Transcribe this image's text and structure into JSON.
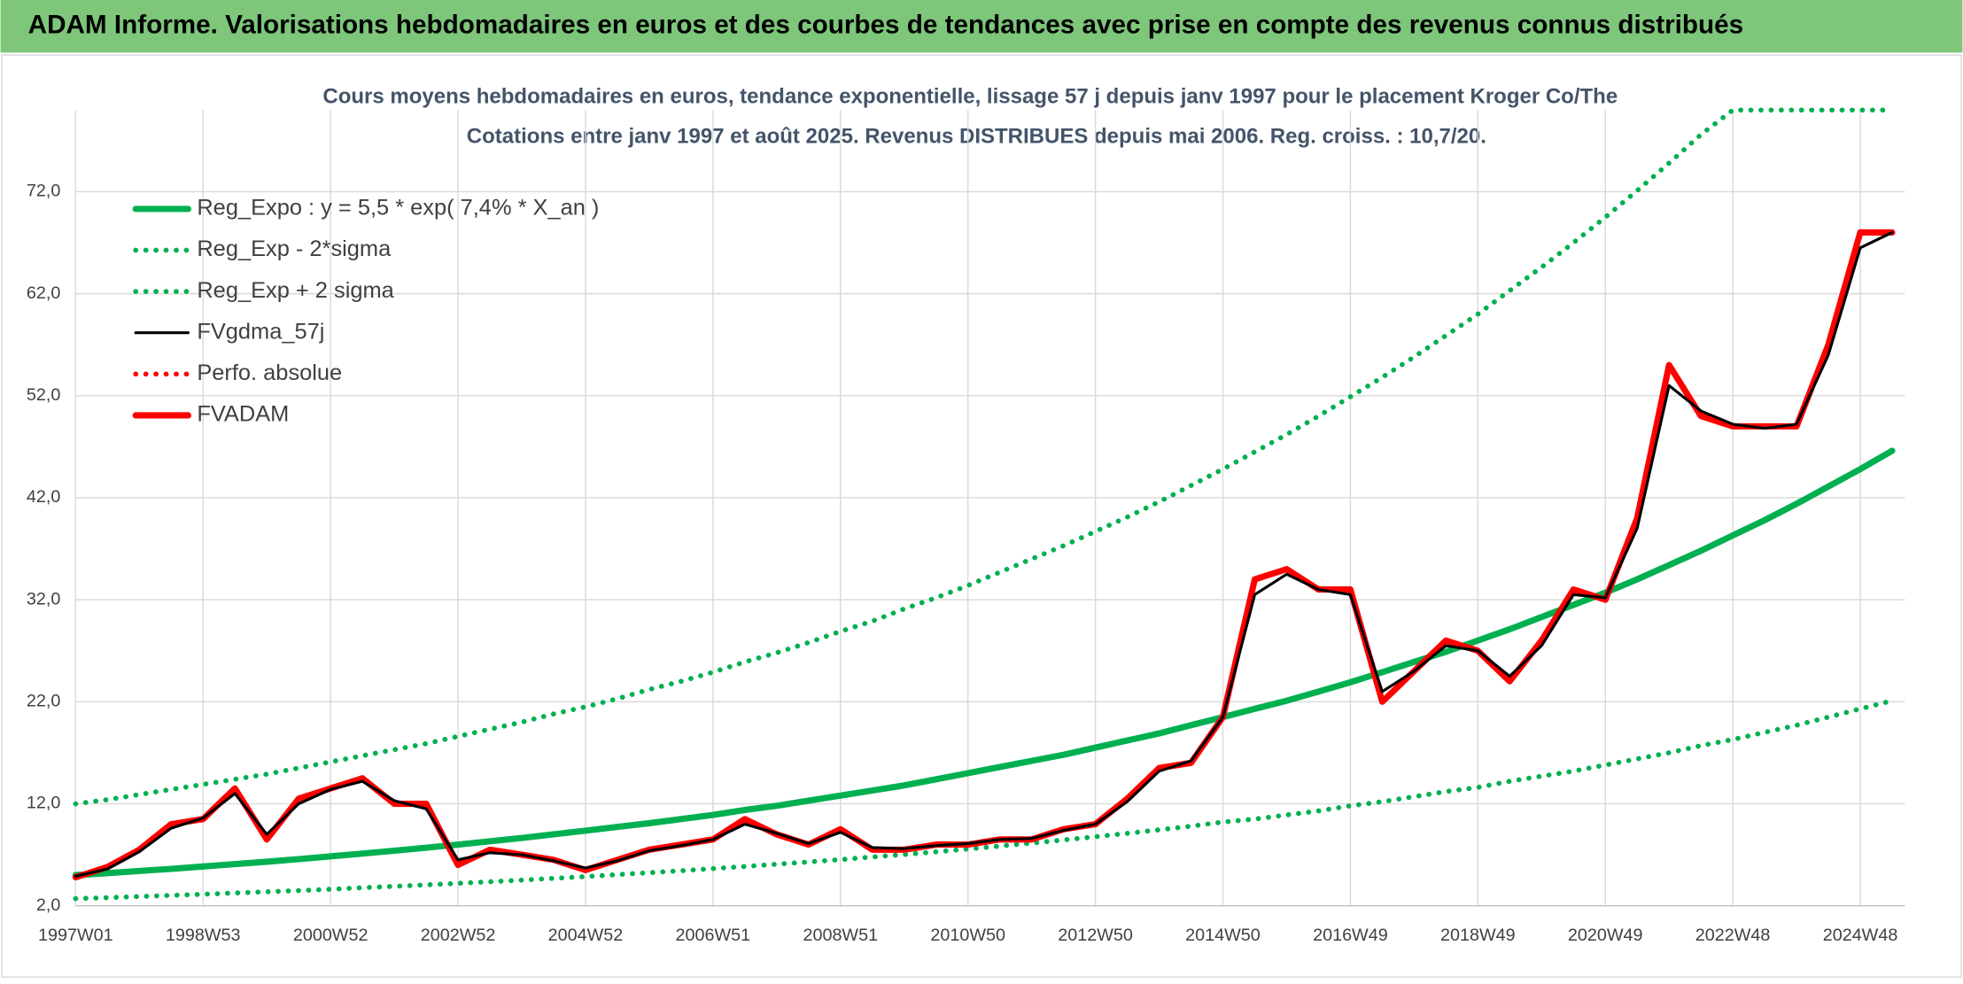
{
  "header": {
    "title": "ADAM Informe. Valorisations hebdomadaires en euros et des courbes de tendances avec prise en compte des revenus connus distribués"
  },
  "chart_data": {
    "type": "line",
    "title": "Cours moyens hebdomadaires en euros, tendance exponentielle, lissage 57 j depuis janv 1997 pour le placement Kroger Co/The",
    "subtitle": "Cotations entre janv 1997 et août 2025. Revenus DISTRIBUES depuis mai 2006. Reg. croiss. : 10,7/20.",
    "categories": [
      "1997W01",
      null,
      null,
      null,
      "1998W53",
      null,
      null,
      null,
      "2000W52",
      null,
      null,
      null,
      "2002W52",
      null,
      null,
      null,
      "2004W52",
      null,
      null,
      null,
      "2006W51",
      null,
      null,
      null,
      "2008W51",
      null,
      null,
      null,
      "2010W50",
      null,
      null,
      null,
      "2012W50",
      null,
      null,
      null,
      "2014W50",
      null,
      null,
      null,
      "2016W49",
      null,
      null,
      null,
      "2018W49",
      null,
      null,
      null,
      "2020W49",
      null,
      null,
      null,
      "2022W48",
      null,
      null,
      null,
      "2024W48",
      null
    ],
    "ylim": [
      2,
      80
    ],
    "yticks": [
      {
        "value": 2,
        "label": "2,0"
      },
      {
        "value": 12,
        "label": "12,0"
      },
      {
        "value": 22,
        "label": "22,0"
      },
      {
        "value": 32,
        "label": "32,0"
      },
      {
        "value": 42,
        "label": "42,0"
      },
      {
        "value": 52,
        "label": "52,0"
      },
      {
        "value": 62,
        "label": "62,0"
      },
      {
        "value": 72,
        "label": "72,0"
      }
    ],
    "grid": true,
    "legend": "top-left",
    "series": [
      {
        "name": "Reg_Expo : y = 5,5 * exp( 7,4% *  X_an )",
        "color": "#00b050",
        "style": "thick",
        "values": [
          5.0,
          5.2,
          5.41,
          5.62,
          5.85,
          6.08,
          6.32,
          6.58,
          6.84,
          7.11,
          7.4,
          7.69,
          8.0,
          8.32,
          8.65,
          9.0,
          9.36,
          9.73,
          10.1,
          10.5,
          10.9,
          11.4,
          11.8,
          12.3,
          12.8,
          13.3,
          13.8,
          14.4,
          15.0,
          15.6,
          16.2,
          16.8,
          17.5,
          18.2,
          18.9,
          19.7,
          20.5,
          21.3,
          22.1,
          23.0,
          23.9,
          24.9,
          25.9,
          26.9,
          28.0,
          29.1,
          30.3,
          31.5,
          32.7,
          34.0,
          35.4,
          36.8,
          38.3,
          39.8,
          41.4,
          43.1,
          44.8,
          46.6
        ]
      },
      {
        "name": "Reg_Exp - 2*sigma",
        "color": "#00b050",
        "style": "dotted",
        "values": [
          2.7,
          2.8,
          2.91,
          3.02,
          3.13,
          3.25,
          3.37,
          3.49,
          3.62,
          3.76,
          3.9,
          4.05,
          4.2,
          4.36,
          4.52,
          4.69,
          4.86,
          5.05,
          5.24,
          5.43,
          5.64,
          5.85,
          6.07,
          6.29,
          6.53,
          6.78,
          7.03,
          7.29,
          7.57,
          7.85,
          8.15,
          8.45,
          8.77,
          9.1,
          9.44,
          9.8,
          10.2,
          10.5,
          10.9,
          11.3,
          11.8,
          12.2,
          12.7,
          13.2,
          13.6,
          14.2,
          14.7,
          15.2,
          15.8,
          16.4,
          17.0,
          17.7,
          18.3,
          19.0,
          19.7,
          20.5,
          21.3,
          22.1
        ]
      },
      {
        "name": "Reg_Exp + 2 sigma",
        "color": "#00b050",
        "style": "dotted",
        "values": [
          12.0,
          12.4,
          12.9,
          13.4,
          13.9,
          14.4,
          14.9,
          15.5,
          16.1,
          16.7,
          17.3,
          17.9,
          18.6,
          19.3,
          20.0,
          20.8,
          21.5,
          22.3,
          23.2,
          24.0,
          24.9,
          25.9,
          26.8,
          27.8,
          28.9,
          29.9,
          31.1,
          32.2,
          33.4,
          34.7,
          36.0,
          37.3,
          38.7,
          40.1,
          41.6,
          43.2,
          44.8,
          46.5,
          48.2,
          50.0,
          51.9,
          53.8,
          55.8,
          57.9,
          60.0,
          62.3,
          64.6,
          67.0,
          69.5,
          72.1,
          74.8,
          77.6,
          80,
          80,
          80,
          80,
          80,
          80
        ]
      },
      {
        "name": "FVgdma_57j",
        "color": "#000000",
        "style": "thin",
        "values": [
          4.9,
          5.6,
          7.3,
          9.6,
          10.6,
          13,
          9,
          12,
          13.4,
          14.2,
          12.3,
          11.5,
          6.5,
          7.2,
          7,
          6.4,
          5.7,
          6.4,
          7.4,
          7.9,
          8.5,
          10,
          9.1,
          8.1,
          9.2,
          7.7,
          7.6,
          7.9,
          8.1,
          8.5,
          8.6,
          9.4,
          10,
          12.2,
          15.2,
          16.2,
          20.5,
          32.5,
          34.5,
          33,
          32.5,
          23,
          25,
          27.5,
          27,
          24.5,
          27.5,
          32.5,
          32.2,
          39,
          53,
          50.5,
          49.2,
          48.8,
          49.2,
          56,
          66.5,
          68
        ]
      },
      {
        "name": "Perfo. absolue",
        "color": "#ff0000",
        "style": "dotted",
        "values": [
          null,
          null,
          null,
          null,
          null,
          null,
          null,
          null,
          null,
          null,
          null,
          null,
          null,
          null,
          null,
          null,
          null,
          null,
          null,
          null,
          null,
          null,
          null,
          null,
          null,
          null,
          null,
          null,
          null,
          null,
          null,
          null,
          null,
          null,
          null,
          null,
          null,
          null,
          null,
          null,
          null,
          null,
          null,
          null,
          null,
          null,
          null,
          null,
          null,
          null,
          null,
          null,
          null,
          null,
          null,
          null,
          null,
          null
        ]
      },
      {
        "name": "FVADAM",
        "color": "#ff0000",
        "style": "thick",
        "values": [
          4.8,
          5.8,
          7.5,
          10,
          10.5,
          13.5,
          8.5,
          12.5,
          13.5,
          14.5,
          12,
          12,
          6,
          7.5,
          7,
          6.5,
          5.5,
          6.5,
          7.5,
          8,
          8.5,
          10.5,
          9,
          8,
          9.5,
          7.5,
          7.5,
          8,
          8,
          8.5,
          8.5,
          9.5,
          10,
          12.5,
          15.5,
          16,
          20.5,
          34,
          35,
          33,
          33,
          22,
          25,
          28,
          27,
          24,
          28,
          33,
          32,
          40,
          55,
          50,
          49,
          49,
          49,
          57,
          68,
          68
        ]
      }
    ]
  }
}
